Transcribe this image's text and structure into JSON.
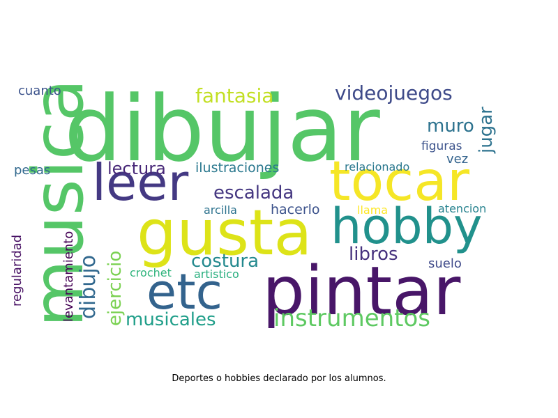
{
  "caption": "Deportes o hobbies declarado por los alumnos.",
  "words": [
    {
      "text": "dibujar",
      "color": "#55c667"
    },
    {
      "text": "musica",
      "color": "#55c667"
    },
    {
      "text": "leer",
      "color": "#443983"
    },
    {
      "text": "tocar",
      "color": "#f5e626"
    },
    {
      "text": "gusta",
      "color": "#dde318"
    },
    {
      "text": "hobby",
      "color": "#21918c"
    },
    {
      "text": "pintar",
      "color": "#481668"
    },
    {
      "text": "etc",
      "color": "#33638d"
    },
    {
      "text": "instrumentos",
      "color": "#5ec962"
    },
    {
      "text": "fantasia",
      "color": "#c2df23"
    },
    {
      "text": "videojuegos",
      "color": "#3e4a89"
    },
    {
      "text": "muro",
      "color": "#2c728e"
    },
    {
      "text": "jugar",
      "color": "#2c728e"
    },
    {
      "text": "figuras",
      "color": "#3b528b"
    },
    {
      "text": "vez",
      "color": "#33638d"
    },
    {
      "text": "lectura",
      "color": "#482878"
    },
    {
      "text": "ilustraciones",
      "color": "#2a788e"
    },
    {
      "text": "relacionado",
      "color": "#2a788e"
    },
    {
      "text": "escalada",
      "color": "#453781"
    },
    {
      "text": "cuanto",
      "color": "#3b528b"
    },
    {
      "text": "pesas",
      "color": "#31688e"
    },
    {
      "text": "arcilla",
      "color": "#2c728e"
    },
    {
      "text": "hacerlo",
      "color": "#3b528b"
    },
    {
      "text": "llama",
      "color": "#fde725"
    },
    {
      "text": "atencion",
      "color": "#26828e"
    },
    {
      "text": "regularidad",
      "color": "#471063"
    },
    {
      "text": "levantamiento",
      "color": "#440154"
    },
    {
      "text": "dibujo",
      "color": "#31688e"
    },
    {
      "text": "ejercicio",
      "color": "#7ad151"
    },
    {
      "text": "costura",
      "color": "#23898e"
    },
    {
      "text": "libros",
      "color": "#46327e"
    },
    {
      "text": "suelo",
      "color": "#3e4989"
    },
    {
      "text": "crochet",
      "color": "#2fb47c"
    },
    {
      "text": "artistico",
      "color": "#29af7f"
    },
    {
      "text": "musicales",
      "color": "#1f9e89"
    }
  ]
}
